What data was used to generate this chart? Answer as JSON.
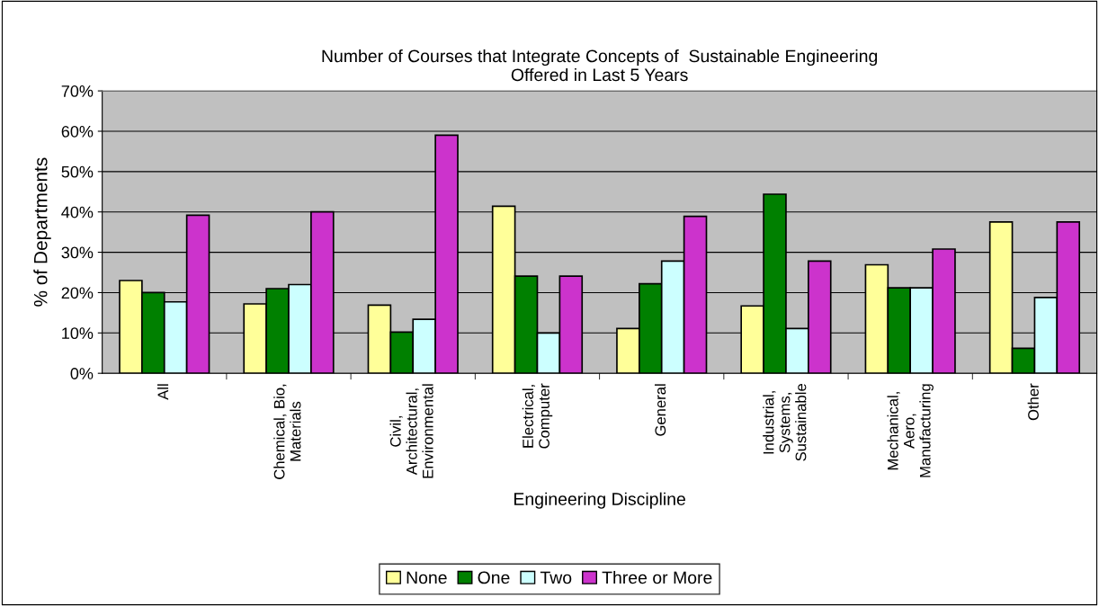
{
  "chart_data": {
    "type": "bar",
    "title": "Number of Courses that Integrate Concepts of  Sustainable Engineering\nOffered in Last 5 Years",
    "xlabel": "Engineering Discipline",
    "ylabel": "% of Departments",
    "categories": [
      "All",
      "Chemical, Bio,\nMaterials",
      "Civil,\nArchitectural,\nEnvironmental",
      "Electrical,\nComputer",
      "General",
      "Industrial,\nSystems,\nSustainable",
      "Mechanical,\nAero,\nManufacturing",
      "Other"
    ],
    "series": [
      {
        "name": "None",
        "color": "#ffff99",
        "values": [
          23,
          17.2,
          16.9,
          41.4,
          11.1,
          16.7,
          26.9,
          37.5
        ]
      },
      {
        "name": "One",
        "color": "#008000",
        "values": [
          20,
          21,
          10.2,
          24.1,
          22.2,
          44.4,
          21.2,
          6.2
        ]
      },
      {
        "name": "Two",
        "color": "#ccffff",
        "values": [
          17.7,
          22,
          13.4,
          10,
          27.8,
          11.1,
          21.2,
          18.8
        ]
      },
      {
        "name": "Three or More",
        "color": "#cc33cc",
        "values": [
          39.2,
          40,
          59,
          24.1,
          38.9,
          27.8,
          30.8,
          37.5
        ]
      }
    ],
    "ylim": [
      0,
      70
    ],
    "yticks": [
      {
        "value": 0,
        "label": "0%"
      },
      {
        "value": 10,
        "label": "10%"
      },
      {
        "value": 20,
        "label": "20%"
      },
      {
        "value": 30,
        "label": "30%"
      },
      {
        "value": 40,
        "label": "40%"
      },
      {
        "value": 50,
        "label": "50%"
      },
      {
        "value": 60,
        "label": "60%"
      },
      {
        "value": 70,
        "label": "70%"
      }
    ],
    "grid": "y",
    "legend": "bottom"
  }
}
